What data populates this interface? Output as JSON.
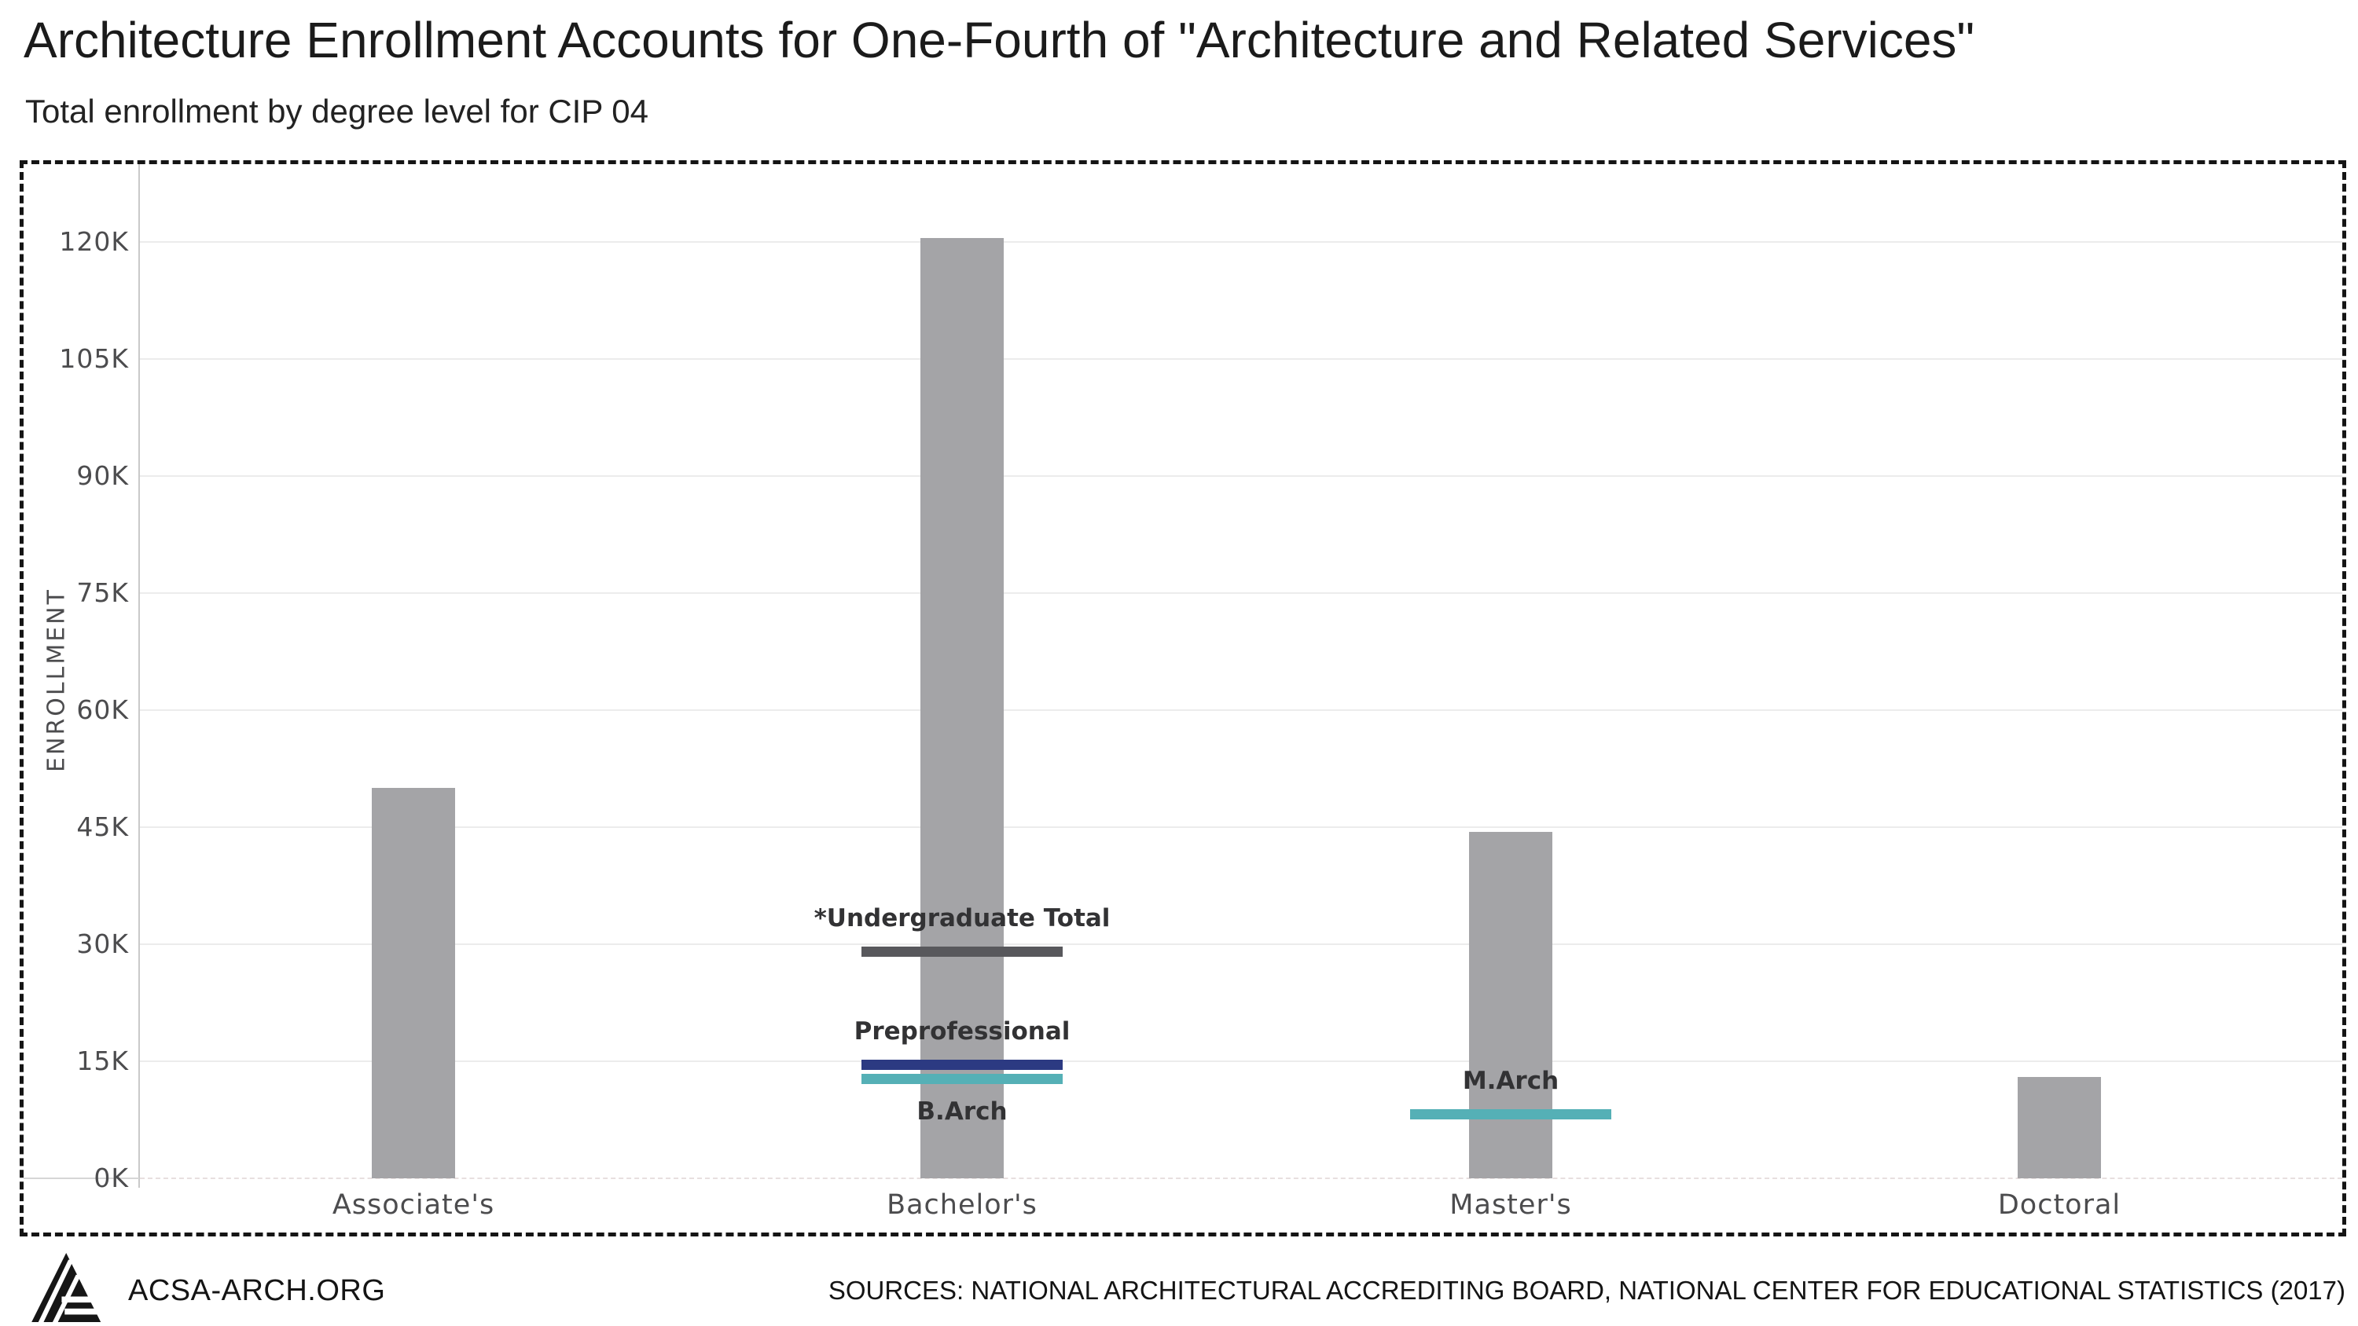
{
  "chart_data": {
    "type": "bar",
    "title": "Architecture Enrollment Accounts for One-Fourth of \"Architecture and Related Services\"",
    "subtitle": "Total enrollment by degree level for CIP 04",
    "categories": [
      "Associate's",
      "Bachelor's",
      "Master's",
      "Doctoral"
    ],
    "values": [
      50000,
      120500,
      44400,
      13000
    ],
    "bar_color": "#a4a4a7",
    "xlabel": "",
    "ylabel": "ENROLLMENT",
    "ylim": [
      0,
      130000
    ],
    "grid": true,
    "legend_position": "none",
    "yticks": {
      "values": [
        0,
        15000,
        30000,
        45000,
        60000,
        75000,
        90000,
        105000,
        120000
      ],
      "labels": [
        "0K",
        "15K",
        "30K",
        "45K",
        "60K",
        "75K",
        "90K",
        "105K",
        "120K"
      ]
    },
    "markers": [
      {
        "label": "*Undergraduate Total",
        "value": 29000,
        "color": "#58585c",
        "category": "Bachelor's",
        "label_position": "above"
      },
      {
        "label": "Preprofessional",
        "value": 14500,
        "color": "#2c3a82",
        "category": "Bachelor's",
        "label_position": "above"
      },
      {
        "label": "B.Arch",
        "value": 12700,
        "color": "#55b0b6",
        "category": "Bachelor's",
        "label_position": "below"
      },
      {
        "label": "M.Arch",
        "value": 8200,
        "color": "#55b0b6",
        "category": "Master's",
        "label_position": "above"
      }
    ]
  },
  "footer": {
    "org": "ACSA-ARCH.ORG",
    "sources": "SOURCES: NATIONAL ARCHITECTURAL ACCREDITING BOARD, NATIONAL CENTER FOR EDUCATIONAL STATISTICS (2017)",
    "logo": "acsa-logo"
  }
}
